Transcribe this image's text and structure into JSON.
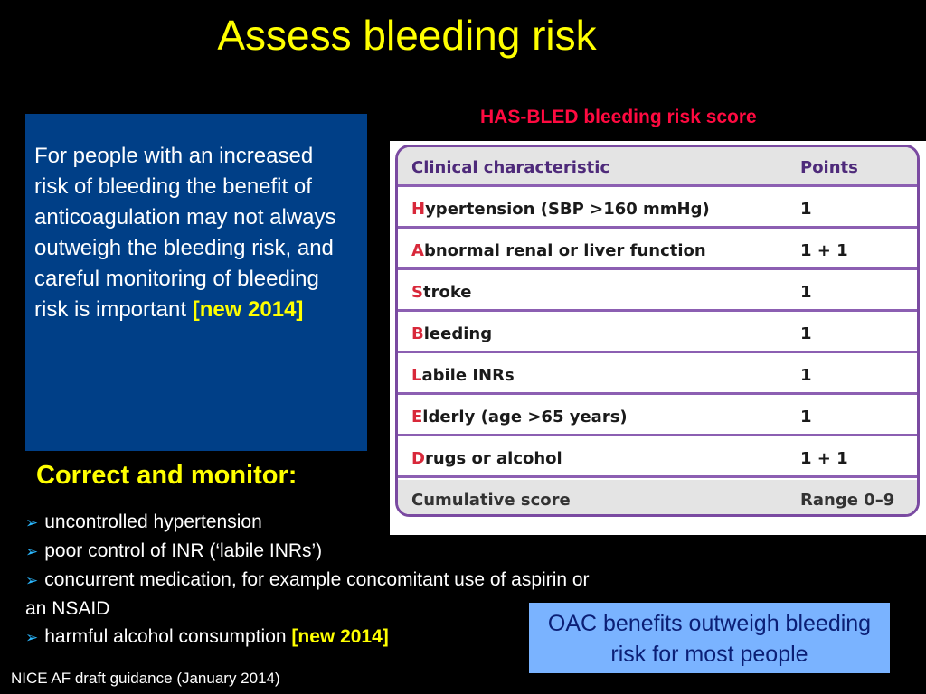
{
  "title": "Assess bleeding risk",
  "intro": {
    "text": "For people with an increased risk of bleeding the benefit of anticoagulation may not always outweigh the bleeding risk, and careful monitoring of bleeding risk is important ",
    "tag": "[new 2014]"
  },
  "score_table": {
    "title": "HAS-BLED bleeding risk score",
    "header": {
      "characteristic": "Clinical characteristic",
      "points": "Points"
    },
    "rows": [
      {
        "initial": "H",
        "rest": "ypertension (SBP >160 mmHg)",
        "points": "1"
      },
      {
        "initial": "A",
        "rest": "bnormal renal or liver function",
        "points": "1 + 1"
      },
      {
        "initial": "S",
        "rest": "troke",
        "points": "1"
      },
      {
        "initial": "B",
        "rest": "leeding",
        "points": "1"
      },
      {
        "initial": "L",
        "rest": "abile INRs",
        "points": "1"
      },
      {
        "initial": "E",
        "rest": "lderly (age >65 years)",
        "points": "1"
      },
      {
        "initial": "D",
        "rest": "rugs or alcohol",
        "points": "1 + 1"
      }
    ],
    "footer": {
      "characteristic": "Cumulative score",
      "points": "Range 0–9"
    }
  },
  "correct_heading": "Correct and monitor:",
  "bullets": [
    {
      "text": "uncontrolled hypertension",
      "tag": ""
    },
    {
      "text": "poor control of INR (‘labile INRs’)",
      "tag": ""
    },
    {
      "text": "concurrent medication, for example concomitant use of aspirin or an NSAID",
      "tag": ""
    },
    {
      "text": "harmful alcohol consumption ",
      "tag": "[new 2014]"
    }
  ],
  "oac_note": "OAC benefits outweigh bleeding risk for most people",
  "source": "NICE AF  draft guidance (January 2014)",
  "colors": {
    "background": "#000000",
    "title": "#ffff00",
    "intro_box": "#003f87",
    "table_title": "#ff0a40",
    "table_border": "#7a4aa1",
    "oac_box": "#7ab3ff",
    "bullet_arrow": "#2bb8ff"
  },
  "icons": {
    "bullet": "right-arrow-icon"
  }
}
